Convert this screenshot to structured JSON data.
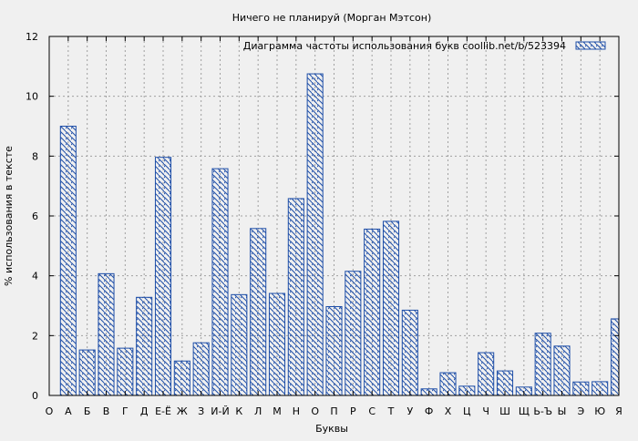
{
  "chart_data": {
    "type": "bar",
    "title": "Ничего не планируй (Морган Мэтсон)",
    "xlabel": "Буквы",
    "ylabel": "% использования в тексте",
    "legend": {
      "label": "Диаграмма частоты использования букв  coollib.net/b/523394",
      "position": "top-right"
    },
    "ylim": [
      0,
      12
    ],
    "yticks": [
      0,
      2,
      4,
      6,
      8,
      10,
      12
    ],
    "grid": true,
    "categories": [
      "О",
      "А",
      "Б",
      "В",
      "Г",
      "Д",
      "Е-Ё",
      "Ж",
      "З",
      "И-Й",
      "К",
      "Л",
      "М",
      "Н",
      "О",
      "П",
      "Р",
      "С",
      "Т",
      "У",
      "Ф",
      "Х",
      "Ц",
      "Ч",
      "Ш",
      "Щ",
      "Ь-Ъ",
      "Ы",
      "Э",
      "Ю",
      "Я"
    ],
    "values": [
      null,
      9.0,
      1.52,
      4.07,
      1.58,
      3.28,
      7.96,
      1.15,
      1.76,
      7.58,
      3.37,
      5.58,
      3.41,
      6.58,
      10.75,
      2.97,
      4.15,
      5.56,
      5.82,
      2.85,
      0.22,
      0.76,
      0.31,
      1.43,
      0.82,
      0.28,
      2.08,
      1.65,
      0.45,
      0.46,
      2.56
    ],
    "colors": {
      "background": "#f0f0f0",
      "bar_stroke": "#1f4fa8",
      "bar_hatch": "#1f4fa8",
      "grid": "#a0a0a0",
      "axis": "#000000"
    }
  }
}
